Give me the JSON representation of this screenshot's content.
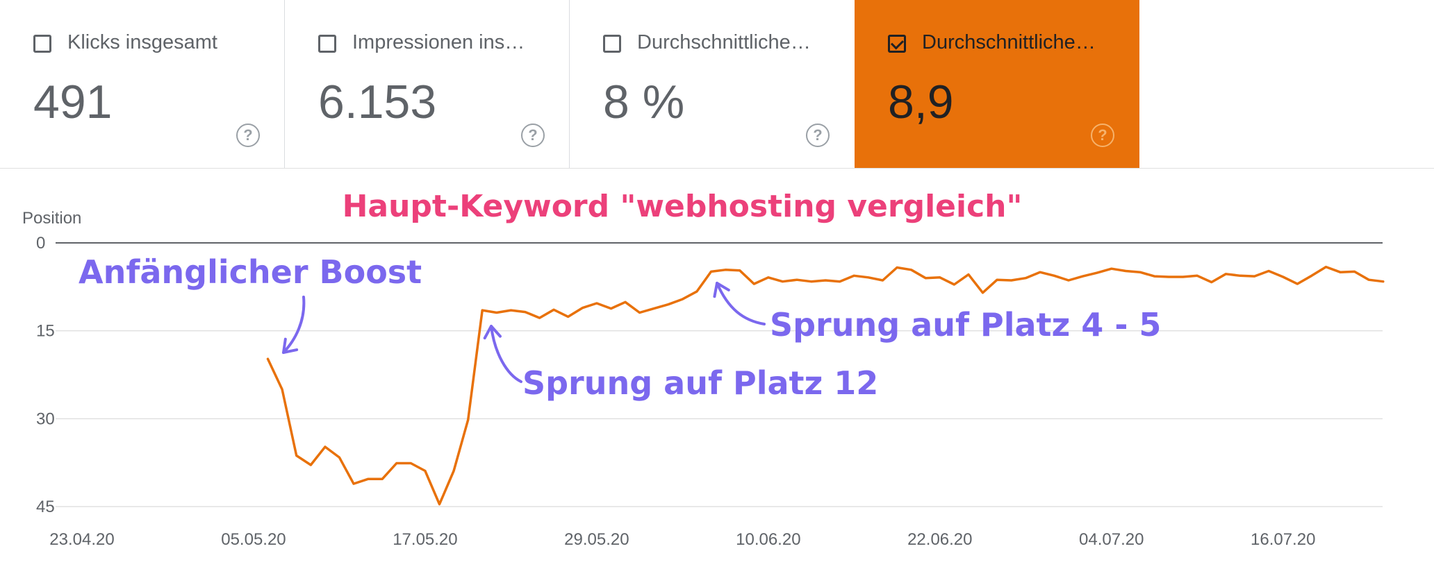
{
  "cards": [
    {
      "label": "Klicks insgesamt",
      "value": "491",
      "checked": false
    },
    {
      "label": "Impressionen ins…",
      "value": "6.153",
      "checked": false
    },
    {
      "label": "Durchschnittliche…",
      "value": "8 %",
      "checked": false
    },
    {
      "label": "Durchschnittliche…",
      "value": "8,9",
      "checked": true
    }
  ],
  "help_glyph": "?",
  "colors": {
    "line": "#e8710a",
    "accent": "#e8710a",
    "annotation": "#7b68ee",
    "title": "#ec407a",
    "grid": "#e0e0e0"
  },
  "chart_data": {
    "type": "line",
    "title": "Haupt-Keyword \"webhosting vergleich\"",
    "ylabel": "Position",
    "y_reversed": true,
    "ylim": [
      0,
      45
    ],
    "yticks": [
      "0",
      "15",
      "30",
      "45"
    ],
    "xlabel": "",
    "xticks": [
      "23.04.20",
      "05.05.20",
      "17.05.20",
      "29.05.20",
      "10.06.20",
      "22.06.20",
      "04.07.20",
      "16.07.20"
    ],
    "xtick_dates": [
      "2020-04-23",
      "2020-05-05",
      "2020-05-17",
      "2020-05-29",
      "2020-06-10",
      "2020-06-22",
      "2020-07-04",
      "2020-07-16"
    ],
    "x_dates": [
      "2020-05-06",
      "2020-05-07",
      "2020-05-08",
      "2020-05-09",
      "2020-05-10",
      "2020-05-11",
      "2020-05-12",
      "2020-05-13",
      "2020-05-14",
      "2020-05-15",
      "2020-05-16",
      "2020-05-17",
      "2020-05-18",
      "2020-05-19",
      "2020-05-20",
      "2020-05-21",
      "2020-05-22",
      "2020-05-23",
      "2020-05-24",
      "2020-05-25",
      "2020-05-26",
      "2020-05-27",
      "2020-05-28",
      "2020-05-29",
      "2020-05-30",
      "2020-05-31",
      "2020-06-01",
      "2020-06-02",
      "2020-06-03",
      "2020-06-04",
      "2020-06-05",
      "2020-06-06",
      "2020-06-07",
      "2020-06-08",
      "2020-06-09",
      "2020-06-10",
      "2020-06-11",
      "2020-06-12",
      "2020-06-13",
      "2020-06-14",
      "2020-06-15",
      "2020-06-16",
      "2020-06-17",
      "2020-06-18",
      "2020-06-19",
      "2020-06-20",
      "2020-06-21",
      "2020-06-22",
      "2020-06-23",
      "2020-06-24",
      "2020-06-25",
      "2020-06-26",
      "2020-06-27",
      "2020-06-28",
      "2020-06-29",
      "2020-06-30",
      "2020-07-01",
      "2020-07-02",
      "2020-07-03",
      "2020-07-04",
      "2020-07-05",
      "2020-07-06",
      "2020-07-07",
      "2020-07-08",
      "2020-07-09",
      "2020-07-10",
      "2020-07-11",
      "2020-07-12",
      "2020-07-13",
      "2020-07-14",
      "2020-07-15",
      "2020-07-16",
      "2020-07-17",
      "2020-07-18",
      "2020-07-19",
      "2020-07-20",
      "2020-07-21",
      "2020-07-22",
      "2020-07-23"
    ],
    "values": [
      19.8,
      25,
      36.3,
      37.9,
      34.8,
      36.6,
      41.1,
      40.3,
      40.3,
      37.6,
      37.6,
      38.9,
      44.6,
      38.9,
      30.2,
      11.5,
      11.9,
      11.5,
      11.8,
      12.8,
      11.4,
      12.6,
      11.1,
      10.3,
      11.2,
      10.1,
      11.9,
      11.2,
      10.5,
      9.6,
      8.3,
      4.9,
      4.6,
      4.7,
      7,
      5.9,
      6.6,
      6.3,
      6.6,
      6.4,
      6.6,
      5.6,
      5.9,
      6.4,
      4.2,
      4.6,
      6,
      5.9,
      7.1,
      5.4,
      8.5,
      6.3,
      6.4,
      6,
      5,
      5.6,
      6.4,
      5.7,
      5.1,
      4.4,
      4.8,
      5,
      5.7,
      5.8,
      5.8,
      5.6,
      6.7,
      5.3,
      5.6,
      5.7,
      4.8,
      5.8,
      7,
      5.6,
      4.1,
      5,
      4.9,
      6.3,
      6.6
    ],
    "annotations": [
      {
        "text": "Anfänglicher Boost",
        "date": "2020-05-06",
        "value": 19.8
      },
      {
        "text": "Sprung auf  Platz 12",
        "date": "2020-05-21",
        "value": 11.5
      },
      {
        "text": "Sprung auf  Platz 4 - 5",
        "date": "2020-06-07",
        "value": 4.6
      }
    ]
  }
}
